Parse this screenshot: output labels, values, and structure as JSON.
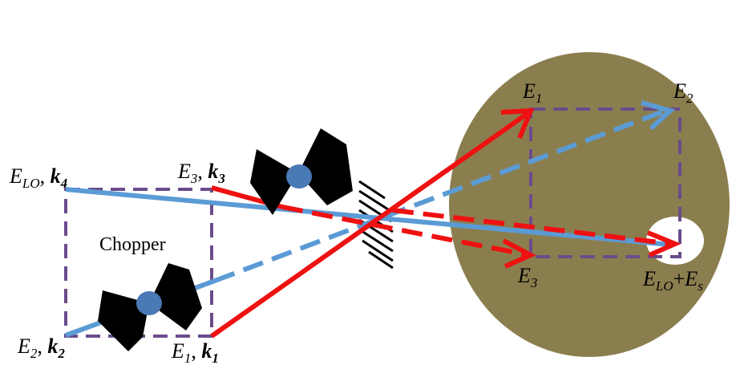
{
  "labels": {
    "elo_k4": {
      "e": "E",
      "sub": "LO",
      "sep": ", ",
      "k": "k",
      "ksub": "4"
    },
    "e3_k3": {
      "e": "E",
      "sub": "3",
      "sep": ", ",
      "k": "k",
      "ksub": "3"
    },
    "e2_k2": {
      "e": "E",
      "sub": "2",
      "sep": ", ",
      "k": "k",
      "ksub": "2"
    },
    "e1_k1": {
      "e": "E",
      "sub": "1",
      "sep": ", ",
      "k": "k",
      "ksub": "1"
    },
    "chopper": "Chopper",
    "det_e1": {
      "e": "E",
      "sub": "1"
    },
    "det_e2": {
      "e": "E",
      "sub": "2"
    },
    "det_e3": {
      "e": "E",
      "sub": "3"
    },
    "det_sig": {
      "e": "E",
      "sub": "LO",
      "plus": "+",
      "e2": "E",
      "sub2": "s"
    }
  },
  "colors": {
    "red_beam": "#ee1111",
    "blue_beam": "#5b9bd5",
    "box": "#6a4c8c",
    "detector": "#8b7e4e",
    "chopper_hub": "#4a7ab5",
    "chopper_blade": "#000000"
  }
}
